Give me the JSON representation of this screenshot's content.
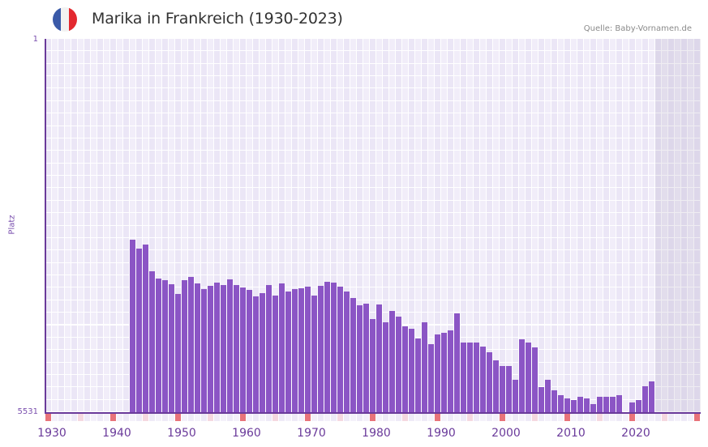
{
  "header": {
    "title": "Marika in Frankreich (1930-2023)",
    "source": "Quelle: Baby-Vornamen.de",
    "flag": {
      "name": "france-flag-icon",
      "colors": [
        "#3a5aa8",
        "#f2f2f2",
        "#e3282f"
      ]
    }
  },
  "axis": {
    "y_top_label": "1",
    "y_bottom_label": "5531",
    "y_title": "Platz",
    "x_ticks": [
      "1930",
      "1940",
      "1950",
      "1960",
      "1970",
      "1980",
      "1990",
      "2000",
      "2010",
      "2020"
    ]
  },
  "colors": {
    "bar": "#8b55c5",
    "axis": "#6a3a9a",
    "grid_a": "#f1edf9",
    "grid_b": "#ebe6f6",
    "strip_red": "#e8737a",
    "strip_pink": "#f5d8e0",
    "future_shade": "#e3dfeb"
  },
  "chart_data": {
    "type": "bar",
    "title": "Marika in Frankreich (1930-2023)",
    "xlabel": "",
    "ylabel": "Platz",
    "ylim": [
      5531,
      1
    ],
    "y_inverted": true,
    "grid": true,
    "x_range": [
      1928,
      2028
    ],
    "shaded_from": 2022,
    "categories": [
      1941,
      1942,
      1943,
      1944,
      1945,
      1946,
      1947,
      1948,
      1949,
      1950,
      1951,
      1952,
      1953,
      1954,
      1955,
      1956,
      1957,
      1958,
      1959,
      1960,
      1961,
      1962,
      1963,
      1964,
      1965,
      1966,
      1967,
      1968,
      1969,
      1970,
      1971,
      1972,
      1973,
      1974,
      1975,
      1976,
      1977,
      1978,
      1979,
      1980,
      1981,
      1982,
      1983,
      1984,
      1985,
      1986,
      1987,
      1988,
      1989,
      1990,
      1991,
      1992,
      1993,
      1994,
      1995,
      1996,
      1997,
      1998,
      1999,
      2000,
      2001,
      2002,
      2003,
      2004,
      2005,
      2006,
      2007,
      2008,
      2009,
      2010,
      2011,
      2012,
      2013,
      2014,
      2015,
      2016,
      2017,
      2018,
      2019,
      2020,
      2021
    ],
    "values": [
      2977,
      3109,
      3049,
      3445,
      3553,
      3577,
      3637,
      3781,
      3577,
      3529,
      3625,
      3709,
      3661,
      3613,
      3649,
      3565,
      3649,
      3685,
      3721,
      3817,
      3769,
      3649,
      3805,
      3625,
      3745,
      3709,
      3697,
      3673,
      3805,
      3661,
      3601,
      3613,
      3673,
      3745,
      3841,
      3949,
      3925,
      4153,
      3937,
      4201,
      4033,
      4117,
      4261,
      4297,
      4441,
      4201,
      4525,
      4381,
      4357,
      4321,
      4069,
      4501,
      4501,
      4501,
      4561,
      4645,
      4765,
      4849,
      4849,
      5053,
      4453,
      4501,
      4573,
      5161,
      5053,
      5209,
      5281,
      5329,
      5353,
      5305,
      5329,
      5413,
      5305,
      5305,
      5305,
      5281,
      null,
      5389,
      5353,
      5149,
      5077
    ]
  }
}
